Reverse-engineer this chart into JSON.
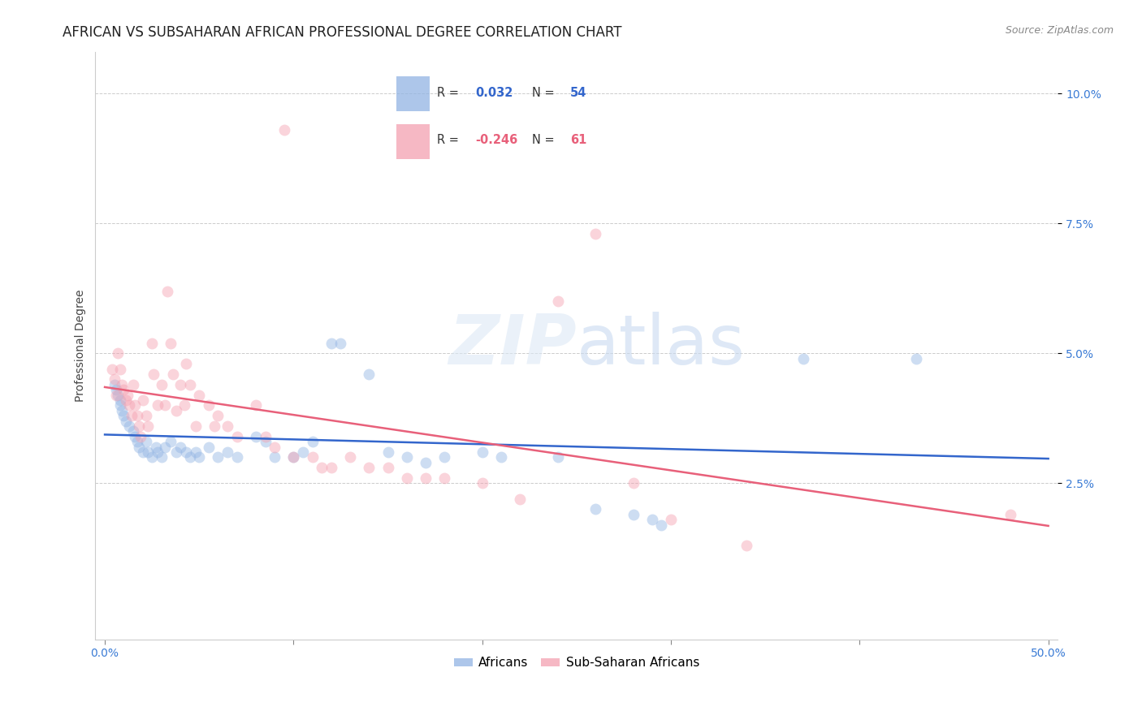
{
  "title": "AFRICAN VS SUBSAHARAN AFRICAN PROFESSIONAL DEGREE CORRELATION CHART",
  "source": "Source: ZipAtlas.com",
  "ylabel": "Professional Degree",
  "watermark": "ZIPatlas",
  "xlim": [
    -0.005,
    0.505
  ],
  "ylim": [
    -0.005,
    0.108
  ],
  "xticks": [
    0.0,
    0.1,
    0.2,
    0.3,
    0.4,
    0.5
  ],
  "yticks": [
    0.025,
    0.05,
    0.075,
    0.1
  ],
  "ytick_labels": [
    "2.5%",
    "5.0%",
    "7.5%",
    "10.0%"
  ],
  "xtick_labels": [
    "0.0%",
    "",
    "",
    "",
    "",
    "50.0%"
  ],
  "legend_africans_R": "0.032",
  "legend_africans_N": "54",
  "legend_subsaharan_R": "-0.246",
  "legend_subsaharan_N": "61",
  "africans_color": "#92b4e3",
  "subsaharan_color": "#f4a0b0",
  "africans_line_color": "#3366cc",
  "subsaharan_line_color": "#e8607a",
  "africans_scatter": [
    [
      0.005,
      0.044
    ],
    [
      0.006,
      0.043
    ],
    [
      0.007,
      0.042
    ],
    [
      0.008,
      0.041
    ],
    [
      0.008,
      0.04
    ],
    [
      0.009,
      0.039
    ],
    [
      0.01,
      0.038
    ],
    [
      0.011,
      0.037
    ],
    [
      0.013,
      0.036
    ],
    [
      0.015,
      0.035
    ],
    [
      0.016,
      0.034
    ],
    [
      0.017,
      0.033
    ],
    [
      0.018,
      0.032
    ],
    [
      0.02,
      0.031
    ],
    [
      0.022,
      0.033
    ],
    [
      0.023,
      0.031
    ],
    [
      0.025,
      0.03
    ],
    [
      0.027,
      0.032
    ],
    [
      0.028,
      0.031
    ],
    [
      0.03,
      0.03
    ],
    [
      0.032,
      0.032
    ],
    [
      0.035,
      0.033
    ],
    [
      0.038,
      0.031
    ],
    [
      0.04,
      0.032
    ],
    [
      0.043,
      0.031
    ],
    [
      0.045,
      0.03
    ],
    [
      0.048,
      0.031
    ],
    [
      0.05,
      0.03
    ],
    [
      0.055,
      0.032
    ],
    [
      0.06,
      0.03
    ],
    [
      0.065,
      0.031
    ],
    [
      0.07,
      0.03
    ],
    [
      0.08,
      0.034
    ],
    [
      0.085,
      0.033
    ],
    [
      0.09,
      0.03
    ],
    [
      0.1,
      0.03
    ],
    [
      0.105,
      0.031
    ],
    [
      0.11,
      0.033
    ],
    [
      0.12,
      0.052
    ],
    [
      0.125,
      0.052
    ],
    [
      0.14,
      0.046
    ],
    [
      0.15,
      0.031
    ],
    [
      0.16,
      0.03
    ],
    [
      0.17,
      0.029
    ],
    [
      0.18,
      0.03
    ],
    [
      0.2,
      0.031
    ],
    [
      0.21,
      0.03
    ],
    [
      0.24,
      0.03
    ],
    [
      0.26,
      0.02
    ],
    [
      0.28,
      0.019
    ],
    [
      0.29,
      0.018
    ],
    [
      0.295,
      0.017
    ],
    [
      0.37,
      0.049
    ],
    [
      0.43,
      0.049
    ]
  ],
  "subsaharan_scatter": [
    [
      0.004,
      0.047
    ],
    [
      0.005,
      0.045
    ],
    [
      0.006,
      0.042
    ],
    [
      0.007,
      0.05
    ],
    [
      0.008,
      0.047
    ],
    [
      0.009,
      0.044
    ],
    [
      0.01,
      0.043
    ],
    [
      0.011,
      0.041
    ],
    [
      0.012,
      0.042
    ],
    [
      0.013,
      0.04
    ],
    [
      0.014,
      0.038
    ],
    [
      0.015,
      0.044
    ],
    [
      0.016,
      0.04
    ],
    [
      0.017,
      0.038
    ],
    [
      0.018,
      0.036
    ],
    [
      0.019,
      0.034
    ],
    [
      0.02,
      0.041
    ],
    [
      0.022,
      0.038
    ],
    [
      0.023,
      0.036
    ],
    [
      0.025,
      0.052
    ],
    [
      0.026,
      0.046
    ],
    [
      0.028,
      0.04
    ],
    [
      0.03,
      0.044
    ],
    [
      0.032,
      0.04
    ],
    [
      0.033,
      0.062
    ],
    [
      0.035,
      0.052
    ],
    [
      0.036,
      0.046
    ],
    [
      0.038,
      0.039
    ],
    [
      0.04,
      0.044
    ],
    [
      0.042,
      0.04
    ],
    [
      0.043,
      0.048
    ],
    [
      0.045,
      0.044
    ],
    [
      0.048,
      0.036
    ],
    [
      0.05,
      0.042
    ],
    [
      0.055,
      0.04
    ],
    [
      0.058,
      0.036
    ],
    [
      0.06,
      0.038
    ],
    [
      0.065,
      0.036
    ],
    [
      0.07,
      0.034
    ],
    [
      0.08,
      0.04
    ],
    [
      0.085,
      0.034
    ],
    [
      0.09,
      0.032
    ],
    [
      0.095,
      0.093
    ],
    [
      0.1,
      0.03
    ],
    [
      0.11,
      0.03
    ],
    [
      0.115,
      0.028
    ],
    [
      0.12,
      0.028
    ],
    [
      0.13,
      0.03
    ],
    [
      0.14,
      0.028
    ],
    [
      0.15,
      0.028
    ],
    [
      0.16,
      0.026
    ],
    [
      0.17,
      0.026
    ],
    [
      0.18,
      0.026
    ],
    [
      0.2,
      0.025
    ],
    [
      0.22,
      0.022
    ],
    [
      0.24,
      0.06
    ],
    [
      0.26,
      0.073
    ],
    [
      0.28,
      0.025
    ],
    [
      0.3,
      0.018
    ],
    [
      0.34,
      0.013
    ],
    [
      0.48,
      0.019
    ]
  ],
  "background_color": "#ffffff",
  "grid_color": "#cccccc",
  "title_fontsize": 12,
  "axis_label_fontsize": 10,
  "tick_fontsize": 10,
  "tick_color": "#3a7bd5",
  "marker_size": 100,
  "marker_alpha": 0.45,
  "line_width": 1.8
}
